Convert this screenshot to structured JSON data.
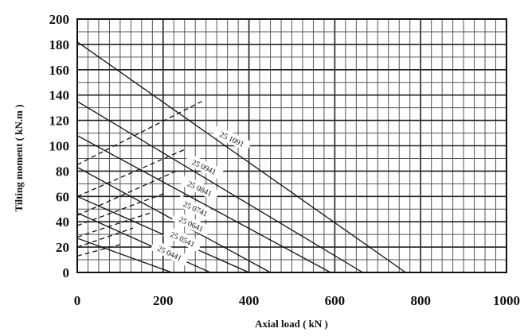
{
  "chart_data": {
    "type": "line",
    "title": "",
    "xlabel": "Axial load ( kN )",
    "ylabel": "Tilting moment ( kN.m )",
    "xlim": [
      0,
      1000
    ],
    "ylim": [
      0,
      200
    ],
    "xticks": [
      "0",
      "200",
      "400",
      "600",
      "800",
      "1000"
    ],
    "yticks": [
      "0",
      "20",
      "40",
      "60",
      "80",
      "100",
      "120",
      "140",
      "160",
      "180",
      "200"
    ],
    "grid": true,
    "series": [
      {
        "name": "25 1091",
        "style": "solid",
        "x": [
          0,
          765
        ],
        "y": [
          182,
          0
        ]
      },
      {
        "name": "25 0941",
        "style": "solid",
        "x": [
          0,
          665
        ],
        "y": [
          135,
          0
        ]
      },
      {
        "name": "25 0841",
        "style": "solid",
        "x": [
          0,
          590
        ],
        "y": [
          108,
          0
        ]
      },
      {
        "name": "25 0741",
        "style": "solid",
        "x": [
          0,
          450
        ],
        "y": [
          83,
          0
        ]
      },
      {
        "name": "25 0641",
        "style": "solid",
        "x": [
          0,
          400
        ],
        "y": [
          60,
          0
        ]
      },
      {
        "name": "25 0541",
        "style": "solid",
        "x": [
          0,
          310
        ],
        "y": [
          47,
          0
        ]
      },
      {
        "name": "25 0441",
        "style": "solid",
        "x": [
          0,
          220
        ],
        "y": [
          27,
          0
        ]
      },
      {
        "name": "",
        "style": "dashed",
        "x": [
          0,
          290
        ],
        "y": [
          85,
          135
        ]
      },
      {
        "name": "",
        "style": "dashed",
        "x": [
          0,
          250
        ],
        "y": [
          60,
          97
        ]
      },
      {
        "name": "",
        "style": "dashed",
        "x": [
          0,
          230
        ],
        "y": [
          45,
          80
        ]
      },
      {
        "name": "",
        "style": "dashed",
        "x": [
          0,
          200
        ],
        "y": [
          37,
          62
        ]
      },
      {
        "name": "",
        "style": "dashed",
        "x": [
          0,
          170
        ],
        "y": [
          28,
          47
        ]
      },
      {
        "name": "",
        "style": "dashed",
        "x": [
          0,
          130
        ],
        "y": [
          20,
          35
        ]
      },
      {
        "name": "",
        "style": "dashed",
        "x": [
          0,
          100
        ],
        "y": [
          13,
          22
        ]
      }
    ],
    "curve_labels": [
      {
        "text": "25 1091",
        "x": 360,
        "y": 105
      },
      {
        "text": "25 0941",
        "x": 295,
        "y": 83
      },
      {
        "text": "25 0841",
        "x": 285,
        "y": 66
      },
      {
        "text": "25 0741",
        "x": 275,
        "y": 50
      },
      {
        "text": "25 0641",
        "x": 265,
        "y": 38
      },
      {
        "text": "25 0541",
        "x": 245,
        "y": 26
      },
      {
        "text": "25 0441",
        "x": 215,
        "y": 15
      }
    ]
  }
}
